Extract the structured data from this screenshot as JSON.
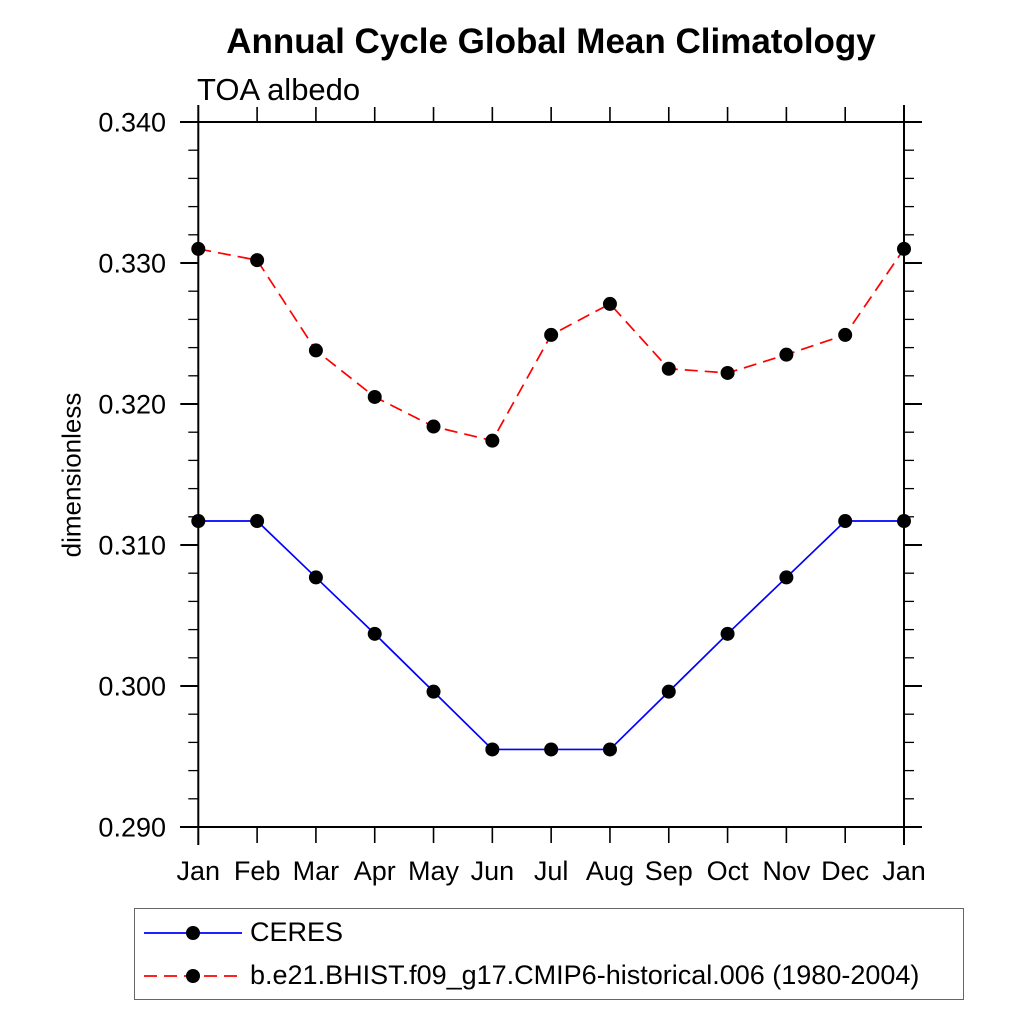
{
  "chart_data": {
    "type": "line",
    "title": "Annual Cycle Global Mean Climatology",
    "subtitle": "TOA albedo",
    "ylabel": "dimensionless",
    "xlabel": "",
    "x_categories": [
      "Jan",
      "Feb",
      "Mar",
      "Apr",
      "May",
      "Jun",
      "Jul",
      "Aug",
      "Sep",
      "Oct",
      "Nov",
      "Dec",
      "Jan"
    ],
    "ylim": [
      0.29,
      0.34
    ],
    "y_major_tick_step": 0.01,
    "y_minor_tick_step": 0.002,
    "y_tick_labels": [
      "0.340",
      "0.330",
      "0.320",
      "0.310",
      "0.300",
      "0.290"
    ],
    "grid": false,
    "legend_position": "bottom-left-box",
    "marker": "filled-circle",
    "marker_color": "#000000",
    "series": [
      {
        "name": "CERES",
        "color": "#0000ff",
        "line_style": "solid",
        "values": [
          0.3117,
          0.3117,
          0.3077,
          0.3037,
          0.2996,
          0.2955,
          0.2955,
          0.2955,
          0.2996,
          0.3037,
          0.3077,
          0.3117,
          0.3117
        ]
      },
      {
        "name": "b.e21.BHIST.f09_g17.CMIP6-historical.006 (1980-2004)",
        "color": "#ff0000",
        "line_style": "dashed",
        "values": [
          0.331,
          0.3302,
          0.3238,
          0.3205,
          0.3184,
          0.3174,
          0.3249,
          0.3271,
          0.3225,
          0.3222,
          0.3235,
          0.3249,
          0.331
        ]
      }
    ]
  }
}
